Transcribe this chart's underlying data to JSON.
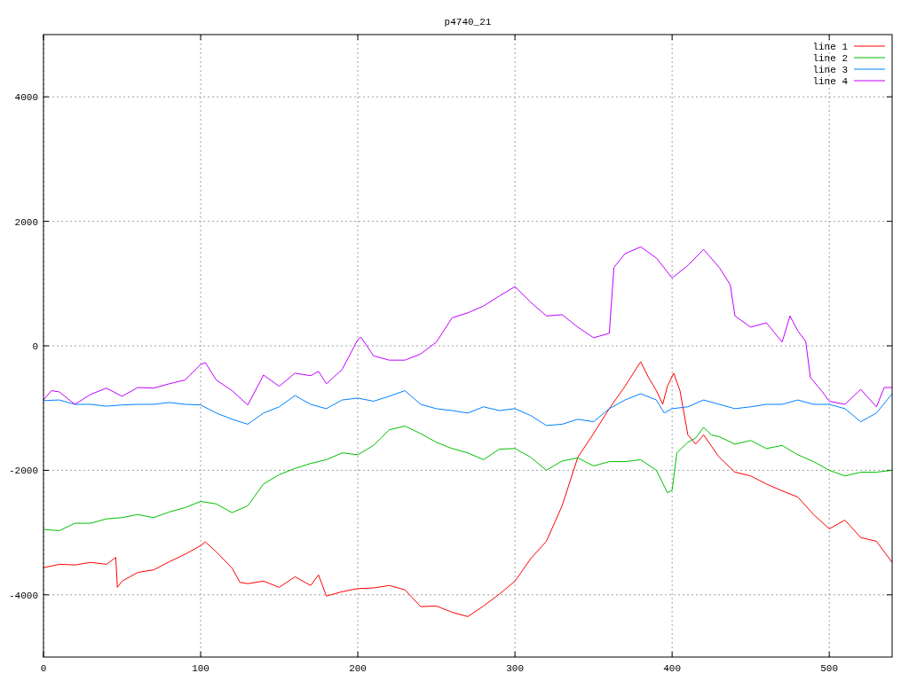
{
  "chart_data": {
    "type": "line",
    "title": "p4740_21",
    "xlim": [
      0,
      540
    ],
    "ylim": [
      -5000,
      5000
    ],
    "xticks": [
      0,
      100,
      200,
      300,
      400,
      500
    ],
    "yticks": [
      -4000,
      -2000,
      0,
      2000,
      4000
    ],
    "grid": true,
    "legend": "top right",
    "line_style": "solid",
    "series": [
      {
        "name": "line 1",
        "color": "#ff0000",
        "x": [
          0,
          10,
          20,
          30,
          40,
          46,
          47,
          50,
          60,
          70,
          80,
          90,
          100,
          103,
          110,
          120,
          125,
          130,
          140,
          150,
          160,
          170,
          175,
          180,
          190,
          200,
          210,
          220,
          230,
          240,
          250,
          260,
          270,
          280,
          290,
          300,
          310,
          320,
          330,
          340,
          350,
          360,
          370,
          380,
          385,
          390,
          394,
          397,
          401,
          405,
          410,
          415,
          420,
          430,
          440,
          450,
          460,
          470,
          480,
          490,
          500,
          510,
          520,
          530,
          540
        ],
        "values": [
          -3565,
          -3510,
          -3520,
          -3480,
          -3510,
          -3400,
          -3880,
          -3780,
          -3640,
          -3600,
          -3470,
          -3350,
          -3210,
          -3150,
          -3310,
          -3570,
          -3800,
          -3820,
          -3780,
          -3880,
          -3710,
          -3850,
          -3680,
          -4020,
          -3950,
          -3900,
          -3890,
          -3850,
          -3920,
          -4190,
          -4180,
          -4280,
          -4350,
          -4180,
          -3990,
          -3780,
          -3420,
          -3140,
          -2570,
          -1790,
          -1410,
          -1010,
          -650,
          -255,
          -510,
          -720,
          -940,
          -650,
          -440,
          -720,
          -1430,
          -1580,
          -1430,
          -1790,
          -2030,
          -2090,
          -2220,
          -2330,
          -2430,
          -2710,
          -2940,
          -2800,
          -3080,
          -3140,
          -3480
        ]
      },
      {
        "name": "line 2",
        "color": "#00c000",
        "x": [
          0,
          10,
          20,
          30,
          40,
          50,
          60,
          70,
          80,
          90,
          100,
          110,
          120,
          130,
          140,
          150,
          160,
          170,
          180,
          190,
          200,
          210,
          220,
          230,
          240,
          250,
          260,
          270,
          280,
          290,
          300,
          310,
          320,
          330,
          340,
          350,
          360,
          370,
          380,
          390,
          397,
          400,
          403,
          410,
          415,
          420,
          425,
          430,
          440,
          450,
          460,
          470,
          480,
          490,
          500,
          510,
          520,
          530,
          540
        ],
        "values": [
          -2950,
          -2970,
          -2850,
          -2850,
          -2780,
          -2760,
          -2710,
          -2760,
          -2670,
          -2600,
          -2500,
          -2540,
          -2680,
          -2570,
          -2220,
          -2070,
          -1970,
          -1890,
          -1830,
          -1720,
          -1750,
          -1600,
          -1350,
          -1290,
          -1410,
          -1550,
          -1650,
          -1720,
          -1830,
          -1660,
          -1650,
          -1790,
          -2000,
          -1850,
          -1800,
          -1930,
          -1860,
          -1860,
          -1830,
          -2000,
          -2360,
          -2320,
          -1720,
          -1550,
          -1480,
          -1310,
          -1430,
          -1460,
          -1580,
          -1520,
          -1650,
          -1600,
          -1750,
          -1860,
          -2000,
          -2090,
          -2030,
          -2030,
          -2000
        ]
      },
      {
        "name": "line 3",
        "color": "#0080ff",
        "x": [
          0,
          10,
          20,
          30,
          40,
          50,
          60,
          70,
          80,
          90,
          100,
          110,
          120,
          130,
          140,
          150,
          160,
          170,
          180,
          190,
          200,
          210,
          220,
          230,
          240,
          250,
          260,
          270,
          280,
          290,
          300,
          310,
          320,
          330,
          340,
          350,
          360,
          370,
          380,
          390,
          395,
          400,
          410,
          420,
          430,
          440,
          450,
          460,
          470,
          480,
          490,
          500,
          510,
          520,
          530,
          540
        ],
        "values": [
          -880,
          -870,
          -940,
          -940,
          -970,
          -950,
          -940,
          -940,
          -910,
          -940,
          -950,
          -1080,
          -1180,
          -1260,
          -1080,
          -980,
          -800,
          -940,
          -1010,
          -870,
          -840,
          -890,
          -810,
          -720,
          -940,
          -1010,
          -1040,
          -1080,
          -980,
          -1040,
          -1010,
          -1120,
          -1280,
          -1260,
          -1180,
          -1220,
          -1010,
          -870,
          -770,
          -870,
          -1080,
          -1010,
          -980,
          -870,
          -940,
          -1010,
          -980,
          -940,
          -940,
          -870,
          -940,
          -940,
          -1010,
          -1220,
          -1080,
          -770
        ]
      },
      {
        "name": "line 4",
        "color": "#c000ff",
        "x": [
          0,
          5,
          10,
          20,
          30,
          40,
          50,
          60,
          70,
          80,
          90,
          100,
          103,
          110,
          120,
          130,
          140,
          150,
          160,
          170,
          175,
          180,
          190,
          200,
          202,
          210,
          220,
          230,
          240,
          250,
          260,
          270,
          280,
          290,
          300,
          310,
          320,
          330,
          340,
          350,
          360,
          363,
          370,
          380,
          390,
          400,
          410,
          420,
          430,
          437,
          440,
          450,
          460,
          470,
          475,
          480,
          485,
          488,
          495,
          500,
          510,
          520,
          530,
          535,
          540
        ],
        "values": [
          -870,
          -720,
          -740,
          -940,
          -780,
          -680,
          -810,
          -670,
          -680,
          -610,
          -550,
          -300,
          -270,
          -550,
          -720,
          -950,
          -470,
          -650,
          -440,
          -480,
          -410,
          -610,
          -380,
          100,
          140,
          -160,
          -230,
          -230,
          -130,
          60,
          450,
          530,
          640,
          800,
          950,
          700,
          480,
          500,
          300,
          130,
          200,
          1260,
          1480,
          1590,
          1410,
          1090,
          1290,
          1550,
          1260,
          980,
          480,
          300,
          370,
          60,
          480,
          240,
          70,
          -510,
          -720,
          -890,
          -940,
          -700,
          -980,
          -670,
          -670
        ]
      }
    ]
  }
}
